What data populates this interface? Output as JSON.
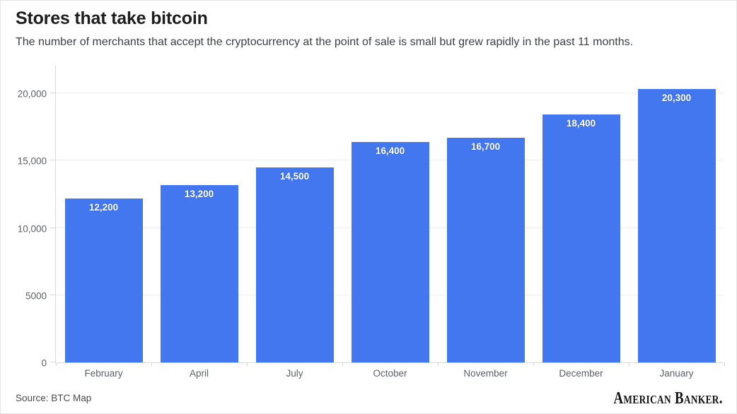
{
  "header": {
    "title": "Stores that take bitcoin",
    "subtitle": "The number of merchants that accept the cryptocurrency at the point of sale is small but grew rapidly in the past 11 months."
  },
  "footer": {
    "source": "Source: BTC Map",
    "brand": "American Banker."
  },
  "colors": {
    "bar": "#4277F0",
    "gridline": "#ededed",
    "axis": "#d8d8d8",
    "title": "#1d1d1d",
    "subtitle": "#3c4043",
    "tick_label": "#5c5f62",
    "bar_label": "#ffffff",
    "source_text": "#4a4a4a",
    "brand_text": "#111111"
  },
  "chart_data": {
    "type": "bar",
    "title": "Stores that take bitcoin",
    "subtitle": "The number of merchants that accept the cryptocurrency at the point of sale is small but grew rapidly in the past 11 months.",
    "categories": [
      "February",
      "April",
      "July",
      "October",
      "November",
      "December",
      "January"
    ],
    "values": [
      12200,
      13200,
      14500,
      16400,
      16700,
      18400,
      20300
    ],
    "value_labels": [
      "12,200",
      "13,200",
      "14,500",
      "16,400",
      "16,700",
      "18,400",
      "20,300"
    ],
    "yticks": [
      {
        "value": 0,
        "label": "0"
      },
      {
        "value": 5000,
        "label": "5000"
      },
      {
        "value": 10000,
        "label": "10,000"
      },
      {
        "value": 15000,
        "label": "15,000"
      },
      {
        "value": 20000,
        "label": "20,000"
      }
    ],
    "xlabel": "",
    "ylabel": "",
    "ylim": [
      0,
      20000
    ],
    "grid": true,
    "legend": false,
    "bar_color": "#4277F0",
    "source": "BTC Map"
  }
}
